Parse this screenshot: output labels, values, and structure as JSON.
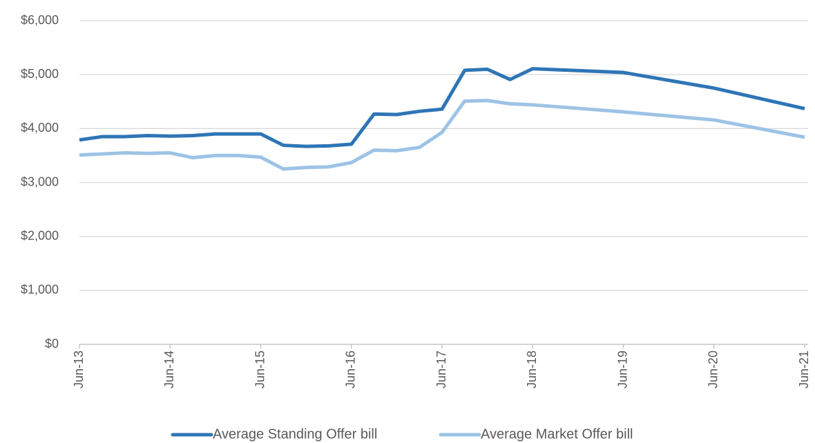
{
  "chart_data": {
    "type": "line",
    "x": [
      2013.5,
      2013.75,
      2014,
      2014.25,
      2014.5,
      2014.75,
      2015,
      2015.25,
      2015.5,
      2015.75,
      2016,
      2016.25,
      2016.5,
      2016.75,
      2017,
      2017.25,
      2017.5,
      2017.75,
      2018,
      2018.25,
      2018.5,
      2019.5,
      2020.5,
      2021.5
    ],
    "xlim": [
      2013.5,
      2021.5
    ],
    "xticks": [
      {
        "value": 2013.5,
        "label": "Jun-13"
      },
      {
        "value": 2014.5,
        "label": "Jun-14"
      },
      {
        "value": 2015.5,
        "label": "Jun-15"
      },
      {
        "value": 2016.5,
        "label": "Jun-16"
      },
      {
        "value": 2017.5,
        "label": "Jun-17"
      },
      {
        "value": 2018.5,
        "label": "Jun-18"
      },
      {
        "value": 2019.5,
        "label": "Jun-19"
      },
      {
        "value": 2020.5,
        "label": "Jun-20"
      },
      {
        "value": 2021.5,
        "label": "Jun-21"
      }
    ],
    "ylim": [
      0,
      6000
    ],
    "yticks": [
      {
        "value": 0,
        "label": "$0"
      },
      {
        "value": 1000,
        "label": "$1,000"
      },
      {
        "value": 2000,
        "label": "$2,000"
      },
      {
        "value": 3000,
        "label": "$3,000"
      },
      {
        "value": 4000,
        "label": "$4,000"
      },
      {
        "value": 5000,
        "label": "$5,000"
      },
      {
        "value": 6000,
        "label": "$6,000"
      }
    ],
    "grid": true,
    "legend": "bottom",
    "series": [
      {
        "name": "Average Standing Offer bill",
        "color": "#2e75b6",
        "values": [
          3790,
          3850,
          3850,
          3870,
          3860,
          3870,
          3900,
          3900,
          3900,
          3690,
          3670,
          3680,
          3710,
          4270,
          4260,
          4320,
          4360,
          5080,
          5100,
          4910,
          5110,
          5040,
          4750,
          4370
        ]
      },
      {
        "name": "Average Market Offer bill",
        "color": "#9dc3e6",
        "values": [
          3510,
          3530,
          3550,
          3540,
          3550,
          3460,
          3500,
          3500,
          3470,
          3250,
          3280,
          3290,
          3370,
          3600,
          3590,
          3650,
          3930,
          4510,
          4520,
          4460,
          4440,
          4310,
          4160,
          3840
        ]
      }
    ]
  }
}
